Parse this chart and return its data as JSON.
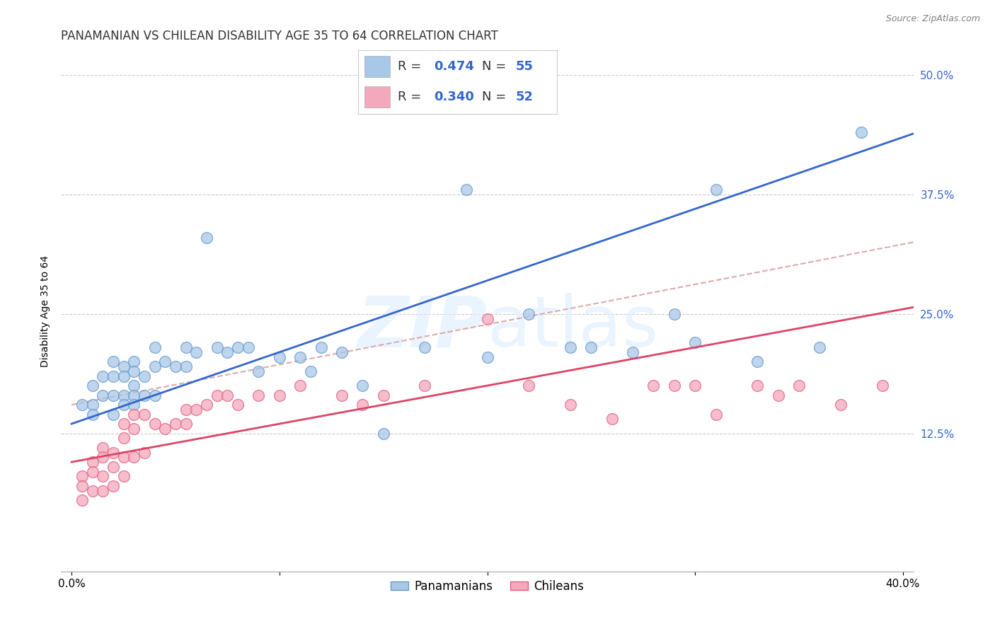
{
  "title": "PANAMANIAN VS CHILEAN DISABILITY AGE 35 TO 64 CORRELATION CHART",
  "source_text": "Source: ZipAtlas.com",
  "xlabel": "",
  "ylabel": "Disability Age 35 to 64",
  "xlim": [
    -0.005,
    0.405
  ],
  "ylim": [
    -0.02,
    0.525
  ],
  "xticks": [
    0.0,
    0.1,
    0.2,
    0.3,
    0.4
  ],
  "xtick_labels": [
    "0.0%",
    "",
    "",
    "",
    "40.0%"
  ],
  "yticks": [
    0.125,
    0.25,
    0.375,
    0.5
  ],
  "ytick_labels": [
    "12.5%",
    "25.0%",
    "37.5%",
    "50.0%"
  ],
  "pan_R": 0.474,
  "pan_N": 55,
  "chi_R": 0.34,
  "chi_N": 52,
  "pan_color": "#A8C8E8",
  "chi_color": "#F4A8BC",
  "pan_edge_color": "#6699CC",
  "chi_edge_color": "#E06080",
  "pan_line_color": "#3366CC",
  "chi_line_color": "#DD4466",
  "dashed_line_color": "#DDAAAA",
  "background_color": "#FFFFFF",
  "grid_color": "#CCCCCC",
  "watermark_color": "#DDEEFF",
  "pan_x": [
    0.005,
    0.01,
    0.01,
    0.01,
    0.015,
    0.015,
    0.02,
    0.02,
    0.02,
    0.02,
    0.025,
    0.025,
    0.025,
    0.025,
    0.03,
    0.03,
    0.03,
    0.03,
    0.03,
    0.035,
    0.035,
    0.04,
    0.04,
    0.04,
    0.045,
    0.05,
    0.055,
    0.055,
    0.06,
    0.065,
    0.07,
    0.075,
    0.08,
    0.085,
    0.09,
    0.1,
    0.11,
    0.115,
    0.12,
    0.13,
    0.14,
    0.15,
    0.17,
    0.19,
    0.2,
    0.22,
    0.24,
    0.25,
    0.27,
    0.29,
    0.3,
    0.31,
    0.33,
    0.36,
    0.38
  ],
  "pan_y": [
    0.155,
    0.175,
    0.155,
    0.145,
    0.185,
    0.165,
    0.2,
    0.185,
    0.165,
    0.145,
    0.195,
    0.185,
    0.165,
    0.155,
    0.2,
    0.19,
    0.175,
    0.165,
    0.155,
    0.185,
    0.165,
    0.215,
    0.195,
    0.165,
    0.2,
    0.195,
    0.215,
    0.195,
    0.21,
    0.33,
    0.215,
    0.21,
    0.215,
    0.215,
    0.19,
    0.205,
    0.205,
    0.19,
    0.215,
    0.21,
    0.175,
    0.125,
    0.215,
    0.38,
    0.205,
    0.25,
    0.215,
    0.215,
    0.21,
    0.25,
    0.22,
    0.38,
    0.2,
    0.215,
    0.44
  ],
  "chi_x": [
    0.005,
    0.005,
    0.005,
    0.01,
    0.01,
    0.01,
    0.015,
    0.015,
    0.015,
    0.015,
    0.02,
    0.02,
    0.02,
    0.025,
    0.025,
    0.025,
    0.025,
    0.03,
    0.03,
    0.03,
    0.035,
    0.035,
    0.04,
    0.045,
    0.05,
    0.055,
    0.055,
    0.06,
    0.065,
    0.07,
    0.075,
    0.08,
    0.09,
    0.1,
    0.11,
    0.13,
    0.14,
    0.15,
    0.17,
    0.2,
    0.22,
    0.24,
    0.26,
    0.28,
    0.29,
    0.3,
    0.31,
    0.33,
    0.34,
    0.35,
    0.37,
    0.39
  ],
  "chi_y": [
    0.08,
    0.07,
    0.055,
    0.095,
    0.085,
    0.065,
    0.11,
    0.1,
    0.08,
    0.065,
    0.105,
    0.09,
    0.07,
    0.135,
    0.12,
    0.1,
    0.08,
    0.145,
    0.13,
    0.1,
    0.145,
    0.105,
    0.135,
    0.13,
    0.135,
    0.15,
    0.135,
    0.15,
    0.155,
    0.165,
    0.165,
    0.155,
    0.165,
    0.165,
    0.175,
    0.165,
    0.155,
    0.165,
    0.175,
    0.245,
    0.175,
    0.155,
    0.14,
    0.175,
    0.175,
    0.175,
    0.145,
    0.175,
    0.165,
    0.175,
    0.155,
    0.175
  ],
  "title_fontsize": 12,
  "axis_label_fontsize": 10,
  "tick_fontsize": 11,
  "legend_fontsize": 14
}
